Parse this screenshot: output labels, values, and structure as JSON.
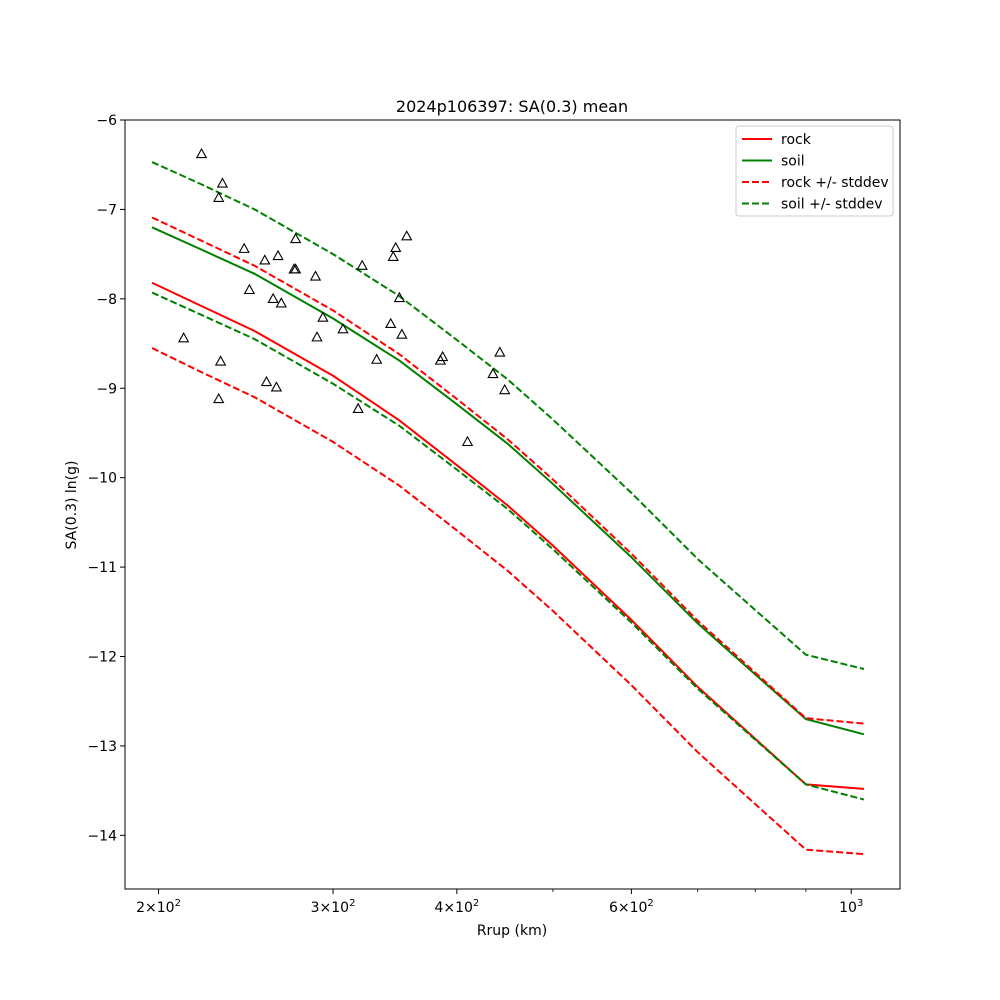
{
  "chart_data": {
    "type": "line",
    "title": "2024p106397: SA(0.3) mean",
    "xlabel": "Rrup (km)",
    "ylabel": "SA(0.3) ln(g)",
    "xscale": "log",
    "xlim": [
      185,
      1120
    ],
    "ylim": [
      -14.6,
      -6.0
    ],
    "grid": false,
    "legend_position": "top-right",
    "x_ticks": [
      {
        "value": 200,
        "base": "2×10",
        "exp": "2"
      },
      {
        "value": 300,
        "base": "3×10",
        "exp": "2"
      },
      {
        "value": 400,
        "base": "4×10",
        "exp": "2"
      },
      {
        "value": 600,
        "base": "6×10",
        "exp": "2"
      },
      {
        "value": 1000,
        "base": "10",
        "exp": "3"
      }
    ],
    "x_minor_ticks": [
      500,
      700,
      800,
      900
    ],
    "y_ticks": [
      {
        "value": -6,
        "label": "−6"
      },
      {
        "value": -7,
        "label": "−7"
      },
      {
        "value": -8,
        "label": "−8"
      },
      {
        "value": -9,
        "label": "−9"
      },
      {
        "value": -10,
        "label": "−10"
      },
      {
        "value": -11,
        "label": "−11"
      },
      {
        "value": -12,
        "label": "−12"
      },
      {
        "value": -13,
        "label": "−13"
      },
      {
        "value": -14,
        "label": "−14"
      }
    ],
    "x": [
      197,
      220,
      250,
      300,
      350,
      400,
      450,
      500,
      600,
      700,
      800,
      900,
      1030
    ],
    "series": [
      {
        "name": "rock",
        "color": "#ff0000",
        "dash": "solid",
        "values": [
          -7.82,
          -8.07,
          -8.36,
          -8.86,
          -9.36,
          -9.86,
          -10.31,
          -10.76,
          -11.59,
          -12.34,
          -12.92,
          -13.43,
          -13.48
        ]
      },
      {
        "name": "soil",
        "color": "#008000",
        "dash": "solid",
        "values": [
          -7.2,
          -7.44,
          -7.72,
          -8.22,
          -8.69,
          -9.18,
          -9.62,
          -10.07,
          -10.89,
          -11.63,
          -12.2,
          -12.7,
          -12.87
        ]
      },
      {
        "name": "rock +/- stddev",
        "color": "#ff0000",
        "dash": "dashed",
        "legend": true,
        "values": [
          -7.09,
          -7.34,
          -7.63,
          -8.13,
          -8.62,
          -9.12,
          -9.57,
          -10.02,
          -10.85,
          -11.6,
          -12.18,
          -12.69,
          -12.75
        ]
      },
      {
        "name": "rock +/- stddev",
        "color": "#ff0000",
        "dash": "dashed",
        "legend": false,
        "values": [
          -8.55,
          -8.81,
          -9.1,
          -9.6,
          -10.09,
          -10.59,
          -11.04,
          -11.49,
          -12.32,
          -13.07,
          -13.65,
          -14.16,
          -14.21
        ]
      },
      {
        "name": "soil +/- stddev",
        "color": "#008000",
        "dash": "dashed",
        "legend": true,
        "values": [
          -6.47,
          -6.71,
          -7.0,
          -7.5,
          -7.97,
          -8.46,
          -8.9,
          -9.35,
          -10.17,
          -10.91,
          -11.48,
          -11.98,
          -12.14
        ]
      },
      {
        "name": "soil +/- stddev",
        "color": "#008000",
        "dash": "dashed",
        "legend": false,
        "values": [
          -7.93,
          -8.17,
          -8.45,
          -8.95,
          -9.42,
          -9.91,
          -10.35,
          -10.8,
          -11.62,
          -12.36,
          -12.93,
          -13.43,
          -13.6
        ]
      }
    ],
    "observations": {
      "marker": "triangle",
      "color": "#000000",
      "points": [
        [
          212,
          -8.44
        ],
        [
          221,
          -6.38
        ],
        [
          230,
          -6.87
        ],
        [
          230,
          -9.12
        ],
        [
          231,
          -8.7
        ],
        [
          232,
          -6.71
        ],
        [
          244,
          -7.44
        ],
        [
          247,
          -7.9
        ],
        [
          256,
          -7.57
        ],
        [
          257,
          -8.93
        ],
        [
          261,
          -8.0
        ],
        [
          263,
          -8.99
        ],
        [
          264,
          -7.52
        ],
        [
          266,
          -8.05
        ],
        [
          274,
          -7.67
        ],
        [
          275,
          -7.33
        ],
        [
          275,
          -7.67
        ],
        [
          288,
          -7.75
        ],
        [
          289,
          -8.43
        ],
        [
          293,
          -8.21
        ],
        [
          307,
          -8.34
        ],
        [
          318,
          -9.23
        ],
        [
          321,
          -7.63
        ],
        [
          332,
          -8.68
        ],
        [
          343,
          -8.28
        ],
        [
          345,
          -7.53
        ],
        [
          347,
          -7.43
        ],
        [
          350,
          -7.99
        ],
        [
          352,
          -8.4
        ],
        [
          356,
          -7.3
        ],
        [
          385,
          -8.69
        ],
        [
          387,
          -8.65
        ],
        [
          410,
          -9.6
        ],
        [
          435,
          -8.84
        ],
        [
          442,
          -8.6
        ],
        [
          447,
          -9.02
        ]
      ]
    }
  }
}
